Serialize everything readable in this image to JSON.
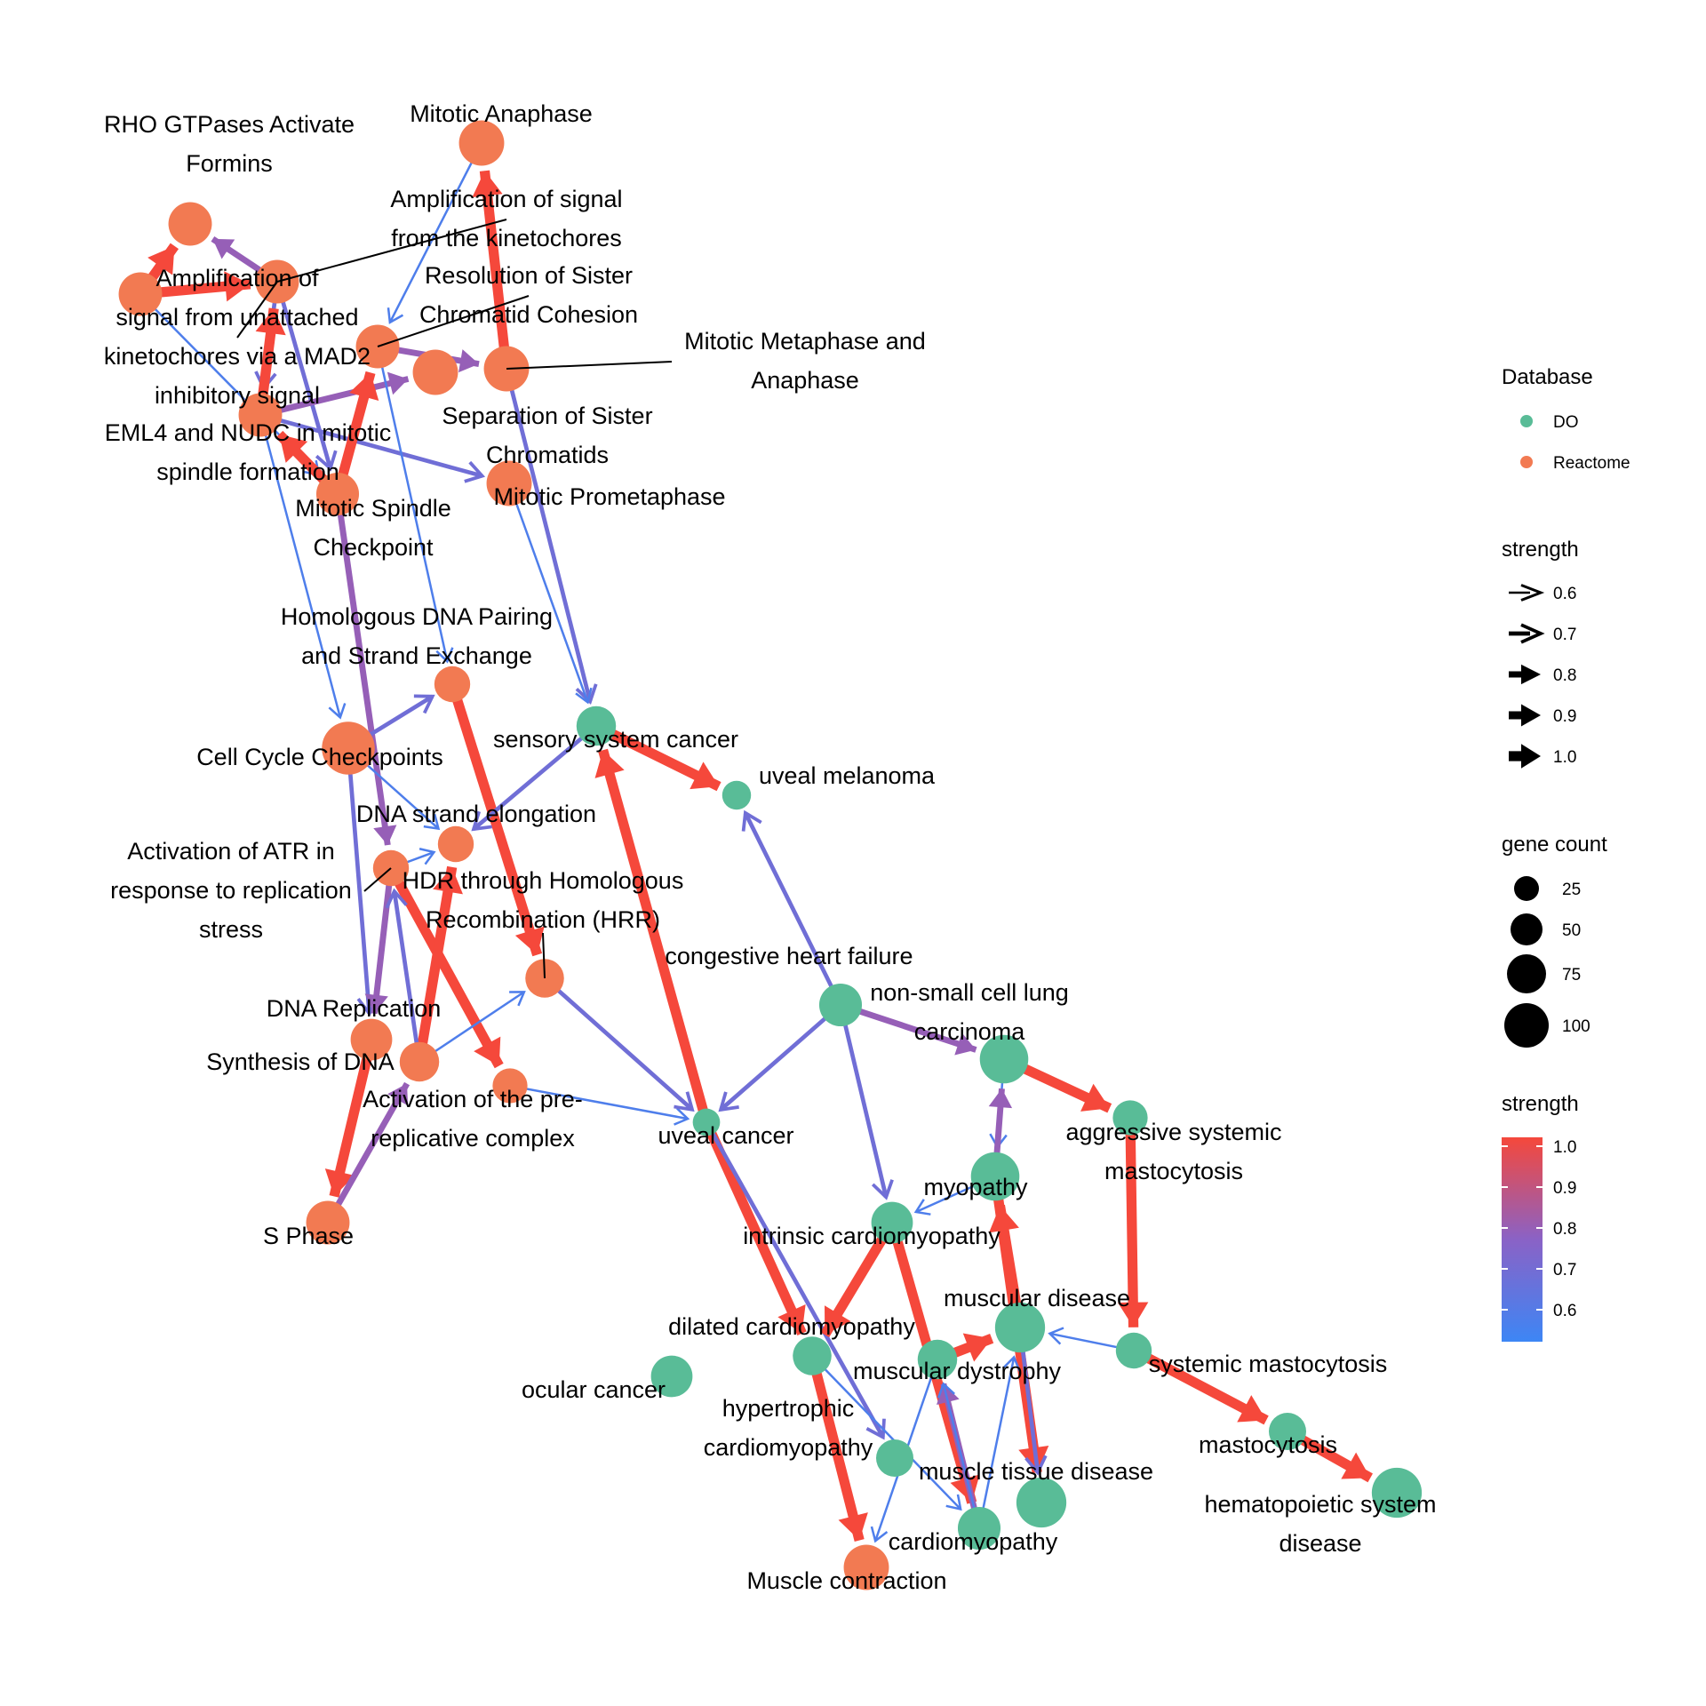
{
  "colors": {
    "DO": "#59BC97",
    "Reactome": "#F27A52",
    "strength_low": "#3D86F5",
    "strength_mid": "#8A62C6",
    "strength_high": "#F5483B"
  },
  "legend": {
    "database_title": "Database",
    "database_items": [
      "DO",
      "Reactome"
    ],
    "arrow_title": "strength",
    "arrow_items": [
      "0.6",
      "0.7",
      "0.8",
      "0.9",
      "1.0"
    ],
    "size_title": "gene count",
    "size_items": [
      "25",
      "50",
      "75",
      "100"
    ],
    "color_title": "strength",
    "color_ticks": [
      "1.0",
      "0.9",
      "0.8",
      "0.7",
      "0.6"
    ]
  },
  "nodes": [
    {
      "id": "rho",
      "db": "Reactome",
      "count": 40,
      "label": [
        "RHO GTPases Activate",
        "Formins"
      ]
    },
    {
      "id": "amp_unatt",
      "db": "Reactome",
      "count": 40,
      "label": [
        "Amplification of",
        "signal from unattached",
        "kinetochores via a MAD2",
        "inhibitory signal"
      ]
    },
    {
      "id": "amp_kin",
      "db": "Reactome",
      "count": 40,
      "label": [
        "Amplification of signal",
        "from the kinetochores"
      ]
    },
    {
      "id": "eml4",
      "db": "Reactome",
      "count": 40,
      "label": [
        "EML4 and NUDC in mitotic",
        "spindle formation"
      ]
    },
    {
      "id": "mit_ana",
      "db": "Reactome",
      "count": 45,
      "label": [
        "Mitotic Anaphase"
      ]
    },
    {
      "id": "res_sister",
      "db": "Reactome",
      "count": 40,
      "label": [
        "Resolution of Sister",
        "Chromatid Cohesion"
      ]
    },
    {
      "id": "sep_sister",
      "db": "Reactome",
      "count": 45,
      "label": [
        "Separation of Sister",
        "Chromatids"
      ]
    },
    {
      "id": "mit_meta",
      "db": "Reactome",
      "count": 45,
      "label": [
        "Mitotic Metaphase and",
        "Anaphase"
      ]
    },
    {
      "id": "mit_prometa",
      "db": "Reactome",
      "count": 45,
      "label": [
        "Mitotic Prometaphase"
      ]
    },
    {
      "id": "mit_spindle",
      "db": "Reactome",
      "count": 38,
      "label": [
        "Mitotic Spindle",
        "Checkpoint"
      ]
    },
    {
      "id": "homol_dna",
      "db": "Reactome",
      "count": 22,
      "label": [
        "Homologous DNA Pairing",
        "and Strand Exchange"
      ]
    },
    {
      "id": "cell_cycle",
      "db": "Reactome",
      "count": 70,
      "label": [
        "Cell Cycle Checkpoints"
      ]
    },
    {
      "id": "sensory",
      "db": "DO",
      "count": 30,
      "label": [
        "sensory system cancer"
      ]
    },
    {
      "id": "uveal_mel",
      "db": "DO",
      "count": 10,
      "label": [
        "uveal melanoma"
      ]
    },
    {
      "id": "dna_strand",
      "db": "Reactome",
      "count": 22,
      "label": [
        "DNA strand elongation"
      ]
    },
    {
      "id": "act_atr",
      "db": "Reactome",
      "count": 22,
      "label": [
        "Activation of ATR in",
        "response to replication",
        "stress"
      ]
    },
    {
      "id": "hdr",
      "db": "Reactome",
      "count": 28,
      "label": [
        "HDR through Homologous",
        "Recombination (HRR)"
      ]
    },
    {
      "id": "chf",
      "db": "DO",
      "count": 38,
      "label": [
        "congestive heart failure"
      ]
    },
    {
      "id": "nsclc",
      "db": "DO",
      "count": 55,
      "label": [
        "non-small cell lung",
        "carcinoma"
      ]
    },
    {
      "id": "dna_rep",
      "db": "Reactome",
      "count": 35,
      "label": [
        "DNA Replication"
      ]
    },
    {
      "id": "synth_dna",
      "db": "Reactome",
      "count": 30,
      "label": [
        "Synthesis of DNA"
      ]
    },
    {
      "id": "act_pre",
      "db": "Reactome",
      "count": 20,
      "label": [
        "Activation of the pre-",
        "replicative complex"
      ]
    },
    {
      "id": "uveal_cancer",
      "db": "DO",
      "count": 8,
      "label": [
        "uveal cancer"
      ]
    },
    {
      "id": "asm",
      "db": "DO",
      "count": 20,
      "label": [
        "aggressive systemic",
        "mastocytosis"
      ]
    },
    {
      "id": "myopathy",
      "db": "DO",
      "count": 55,
      "label": [
        "myopathy"
      ]
    },
    {
      "id": "s_phase",
      "db": "Reactome",
      "count": 40,
      "label": [
        "S Phase"
      ]
    },
    {
      "id": "intrinsic",
      "db": "DO",
      "count": 35,
      "label": [
        "intrinsic cardiomyopathy"
      ]
    },
    {
      "id": "musc_disease",
      "db": "DO",
      "count": 60,
      "label": [
        "muscular disease"
      ]
    },
    {
      "id": "dilated",
      "db": "DO",
      "count": 28,
      "label": [
        "dilated cardiomyopathy"
      ]
    },
    {
      "id": "musc_dys",
      "db": "DO",
      "count": 30,
      "label": [
        "muscular dystrophy"
      ]
    },
    {
      "id": "sys_mast",
      "db": "DO",
      "count": 22,
      "label": [
        "systemic mastocytosis"
      ]
    },
    {
      "id": "ocular",
      "db": "DO",
      "count": 35,
      "label": [
        "ocular cancer"
      ]
    },
    {
      "id": "hypertrophic",
      "db": "DO",
      "count": 25,
      "label": [
        "hypertrophic",
        "cardiomyopathy"
      ]
    },
    {
      "id": "mastocytosis",
      "db": "DO",
      "count": 25,
      "label": [
        "mastocytosis"
      ]
    },
    {
      "id": "musc_tissue",
      "db": "DO",
      "count": 60,
      "label": [
        "muscle tissue disease"
      ]
    },
    {
      "id": "hemato",
      "db": "DO",
      "count": 60,
      "label": [
        "hematopoietic system",
        "disease"
      ]
    },
    {
      "id": "cardiomyopathy",
      "db": "DO",
      "count": 38,
      "label": [
        "cardiomyopathy"
      ]
    },
    {
      "id": "muscle_contr",
      "db": "Reactome",
      "count": 45,
      "label": [
        "Muscle contraction"
      ]
    }
  ],
  "edges": [
    {
      "from": "amp_unatt",
      "to": "rho",
      "strength": 1.0
    },
    {
      "from": "amp_unatt",
      "to": "amp_kin",
      "strength": 1.0
    },
    {
      "from": "amp_unatt",
      "to": "mit_spindle",
      "strength": 0.6
    },
    {
      "from": "amp_kin",
      "to": "rho",
      "strength": 0.8
    },
    {
      "from": "amp_kin",
      "to": "eml4",
      "strength": 0.7
    },
    {
      "from": "amp_kin",
      "to": "mit_spindle",
      "strength": 0.7
    },
    {
      "from": "eml4",
      "to": "amp_kin",
      "strength": 1.0
    },
    {
      "from": "eml4",
      "to": "sep_sister",
      "strength": 0.8
    },
    {
      "from": "eml4",
      "to": "mit_prometa",
      "strength": 0.7
    },
    {
      "from": "eml4",
      "to": "cell_cycle",
      "strength": 0.6
    },
    {
      "from": "mit_spindle",
      "to": "eml4",
      "strength": 1.0
    },
    {
      "from": "mit_spindle",
      "to": "res_sister",
      "strength": 1.0
    },
    {
      "from": "mit_spindle",
      "to": "act_atr",
      "strength": 0.8
    },
    {
      "from": "mit_ana",
      "to": "res_sister",
      "strength": 0.6
    },
    {
      "from": "mit_meta",
      "to": "mit_ana",
      "strength": 1.0
    },
    {
      "from": "mit_meta",
      "to": "sensory",
      "strength": 0.7
    },
    {
      "from": "res_sister",
      "to": "mit_meta",
      "strength": 0.8
    },
    {
      "from": "res_sister",
      "to": "homol_dna",
      "strength": 0.6
    },
    {
      "from": "mit_prometa",
      "to": "sensory",
      "strength": 0.6
    },
    {
      "from": "cell_cycle",
      "to": "homol_dna",
      "strength": 0.7
    },
    {
      "from": "cell_cycle",
      "to": "dna_strand",
      "strength": 0.6
    },
    {
      "from": "cell_cycle",
      "to": "dna_rep",
      "strength": 0.7
    },
    {
      "from": "homol_dna",
      "to": "hdr",
      "strength": 1.0
    },
    {
      "from": "sensory",
      "to": "uveal_mel",
      "strength": 1.0
    },
    {
      "from": "sensory",
      "to": "dna_strand",
      "strength": 0.7
    },
    {
      "from": "act_atr",
      "to": "dna_rep",
      "strength": 0.8
    },
    {
      "from": "act_atr",
      "to": "act_pre",
      "strength": 1.0
    },
    {
      "from": "act_atr",
      "to": "dna_strand",
      "strength": 0.6
    },
    {
      "from": "synth_dna",
      "to": "dna_strand",
      "strength": 1.0
    },
    {
      "from": "synth_dna",
      "to": "hdr",
      "strength": 0.6
    },
    {
      "from": "synth_dna",
      "to": "act_atr",
      "strength": 0.7
    },
    {
      "from": "dna_rep",
      "to": "s_phase",
      "strength": 1.0
    },
    {
      "from": "s_phase",
      "to": "synth_dna",
      "strength": 0.8
    },
    {
      "from": "act_pre",
      "to": "uveal_cancer",
      "strength": 0.6
    },
    {
      "from": "hdr",
      "to": "uveal_cancer",
      "strength": 0.7
    },
    {
      "from": "uveal_cancer",
      "to": "sensory",
      "strength": 1.0
    },
    {
      "from": "uveal_cancer",
      "to": "dilated",
      "strength": 1.0
    },
    {
      "from": "uveal_cancer",
      "to": "hypertrophic",
      "strength": 0.7
    },
    {
      "from": "chf",
      "to": "uveal_mel",
      "strength": 0.7
    },
    {
      "from": "chf",
      "to": "uveal_cancer",
      "strength": 0.7
    },
    {
      "from": "chf",
      "to": "nsclc",
      "strength": 0.8
    },
    {
      "from": "chf",
      "to": "intrinsic",
      "strength": 0.7
    },
    {
      "from": "nsclc",
      "to": "asm",
      "strength": 1.0
    },
    {
      "from": "nsclc",
      "to": "myopathy",
      "strength": 0.6
    },
    {
      "from": "myopathy",
      "to": "intrinsic",
      "strength": 0.6
    },
    {
      "from": "myopathy",
      "to": "nsclc",
      "strength": 0.8
    },
    {
      "from": "myopathy",
      "to": "musc_tissue",
      "strength": 1.0
    },
    {
      "from": "asm",
      "to": "sys_mast",
      "strength": 1.0
    },
    {
      "from": "intrinsic",
      "to": "dilated",
      "strength": 1.0
    },
    {
      "from": "intrinsic",
      "to": "cardiomyopathy",
      "strength": 1.0
    },
    {
      "from": "musc_disease",
      "to": "myopathy",
      "strength": 1.0
    },
    {
      "from": "musc_disease",
      "to": "musc_tissue",
      "strength": 0.7
    },
    {
      "from": "musc_dys",
      "to": "musc_disease",
      "strength": 1.0
    },
    {
      "from": "musc_dys",
      "to": "muscle_contr",
      "strength": 0.6
    },
    {
      "from": "sys_mast",
      "to": "musc_disease",
      "strength": 0.6
    },
    {
      "from": "sys_mast",
      "to": "mastocytosis",
      "strength": 1.0
    },
    {
      "from": "mastocytosis",
      "to": "hemato",
      "strength": 1.0
    },
    {
      "from": "dilated",
      "to": "muscle_contr",
      "strength": 1.0
    },
    {
      "from": "dilated",
      "to": "cardiomyopathy",
      "strength": 0.6
    },
    {
      "from": "cardiomyopathy",
      "to": "musc_dys",
      "strength": 0.8
    },
    {
      "from": "cardiomyopathy",
      "to": "musc_disease",
      "strength": 0.6
    },
    {
      "from": "cardiomyopathy",
      "to": "musc_dys",
      "strength": 0.6
    }
  ]
}
